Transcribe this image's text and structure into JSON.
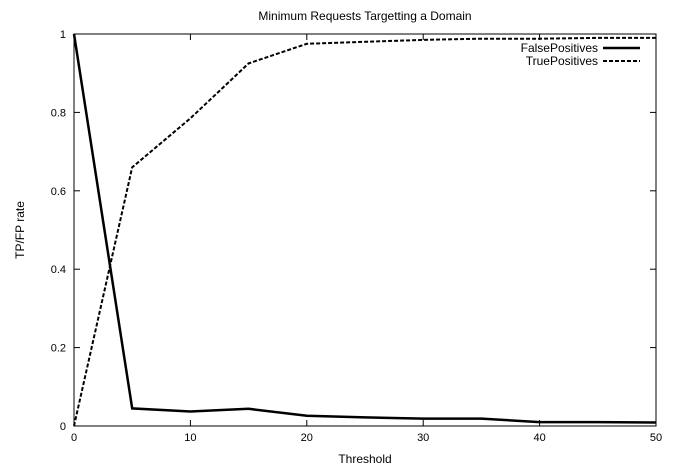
{
  "chart_data": {
    "type": "line",
    "title": "Minimum Requests Targetting a Domain",
    "xlabel": "Threshold",
    "ylabel": "TP/FP rate",
    "xlim": [
      0,
      50
    ],
    "ylim": [
      0,
      1
    ],
    "x_ticks": [
      0,
      10,
      20,
      30,
      40,
      50
    ],
    "y_ticks": [
      0,
      0.2,
      0.4,
      0.6,
      0.8,
      1
    ],
    "x_tick_labels": [
      "0",
      "10",
      "20",
      "30",
      "40",
      "50"
    ],
    "y_tick_labels": [
      "0",
      "0.2",
      "0.4",
      "0.6",
      "0.8",
      "1"
    ],
    "grid": false,
    "legend_position": "top-right",
    "series": [
      {
        "name": "FalsePositives",
        "style": "solid",
        "color": "#000000",
        "x": [
          0,
          5,
          10,
          15,
          20,
          25,
          30,
          35,
          40,
          45,
          50
        ],
        "y": [
          1.0,
          0.045,
          0.037,
          0.044,
          0.026,
          0.022,
          0.019,
          0.019,
          0.01,
          0.01,
          0.009
        ]
      },
      {
        "name": "TruePositives",
        "style": "dashed",
        "color": "#000000",
        "x": [
          0,
          5,
          10,
          15,
          20,
          25,
          30,
          35,
          40,
          45,
          50
        ],
        "y": [
          0.0,
          0.66,
          0.785,
          0.925,
          0.975,
          0.98,
          0.985,
          0.988,
          0.988,
          0.99,
          0.99
        ]
      }
    ]
  }
}
